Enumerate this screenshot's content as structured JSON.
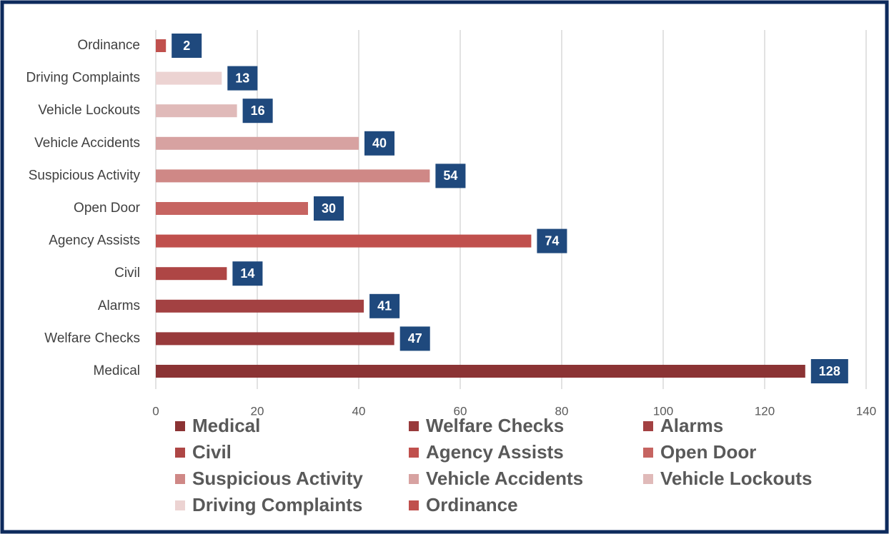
{
  "chart_data": {
    "type": "bar",
    "orientation": "horizontal",
    "categories": [
      "Medical",
      "Welfare Checks",
      "Alarms",
      "Civil ",
      "Agency Assists",
      "Open Door",
      "Suspicious Activity",
      "Vehicle Accidents",
      "Vehicle Lockouts",
      "Driving Complaints",
      "Ordinance"
    ],
    "values": [
      128,
      47,
      41,
      14,
      74,
      30,
      54,
      40,
      16,
      13,
      2
    ],
    "colors": [
      "#8b3334",
      "#983a3b",
      "#a34142",
      "#ae4645",
      "#c0504d",
      "#c66461",
      "#cf8886",
      "#d7a2a1",
      "#e0bab9",
      "#ecd3d2",
      "#c0504d"
    ],
    "label_color": "#1f497d",
    "xlim": [
      0,
      140
    ],
    "xticks": [
      0,
      20,
      40,
      60,
      80,
      100,
      120,
      140
    ],
    "grid": true,
    "legend": "bottom"
  }
}
